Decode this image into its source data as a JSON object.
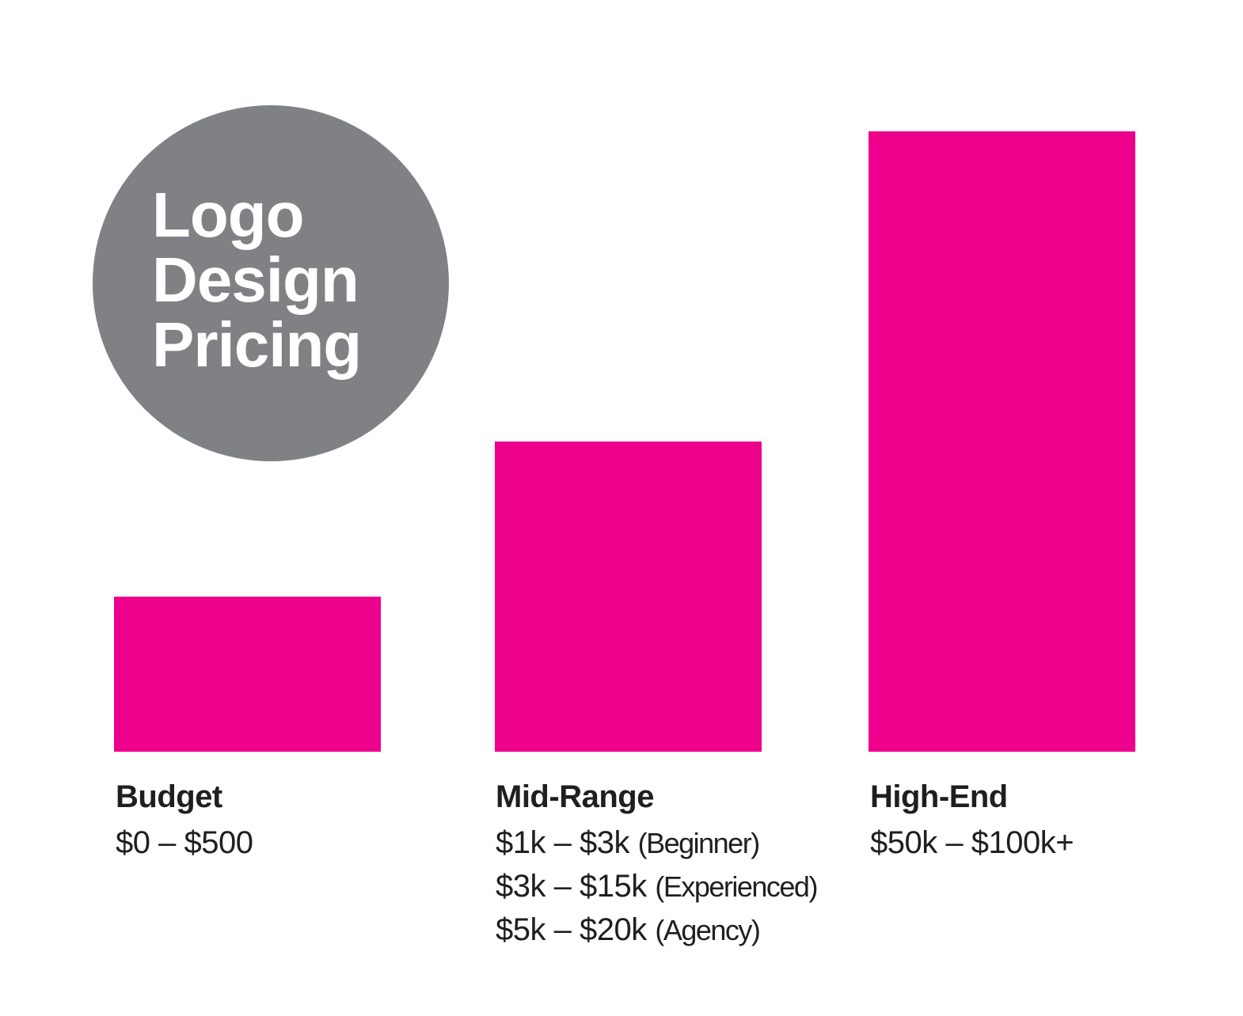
{
  "chart_data": {
    "type": "bar",
    "title_lines": [
      "Logo",
      "Design",
      "Pricing"
    ],
    "categories": [
      "Budget",
      "Mid-Range",
      "High-End"
    ],
    "values": [
      1,
      2,
      4
    ],
    "bar_color": "#EC008C",
    "badge_color": "#808184",
    "ranges": [
      [
        {
          "price": "$0 – $500",
          "note": ""
        }
      ],
      [
        {
          "price": "$1k – $3k",
          "note": "(Beginner)"
        },
        {
          "price": "$3k – $15k",
          "note": "(Experienced)"
        },
        {
          "price": "$5k – $20k",
          "note": "(Agency)"
        }
      ],
      [
        {
          "price": "$50k – $100k+",
          "note": ""
        }
      ]
    ],
    "axes_visible": false,
    "grid": false,
    "legend": false
  }
}
